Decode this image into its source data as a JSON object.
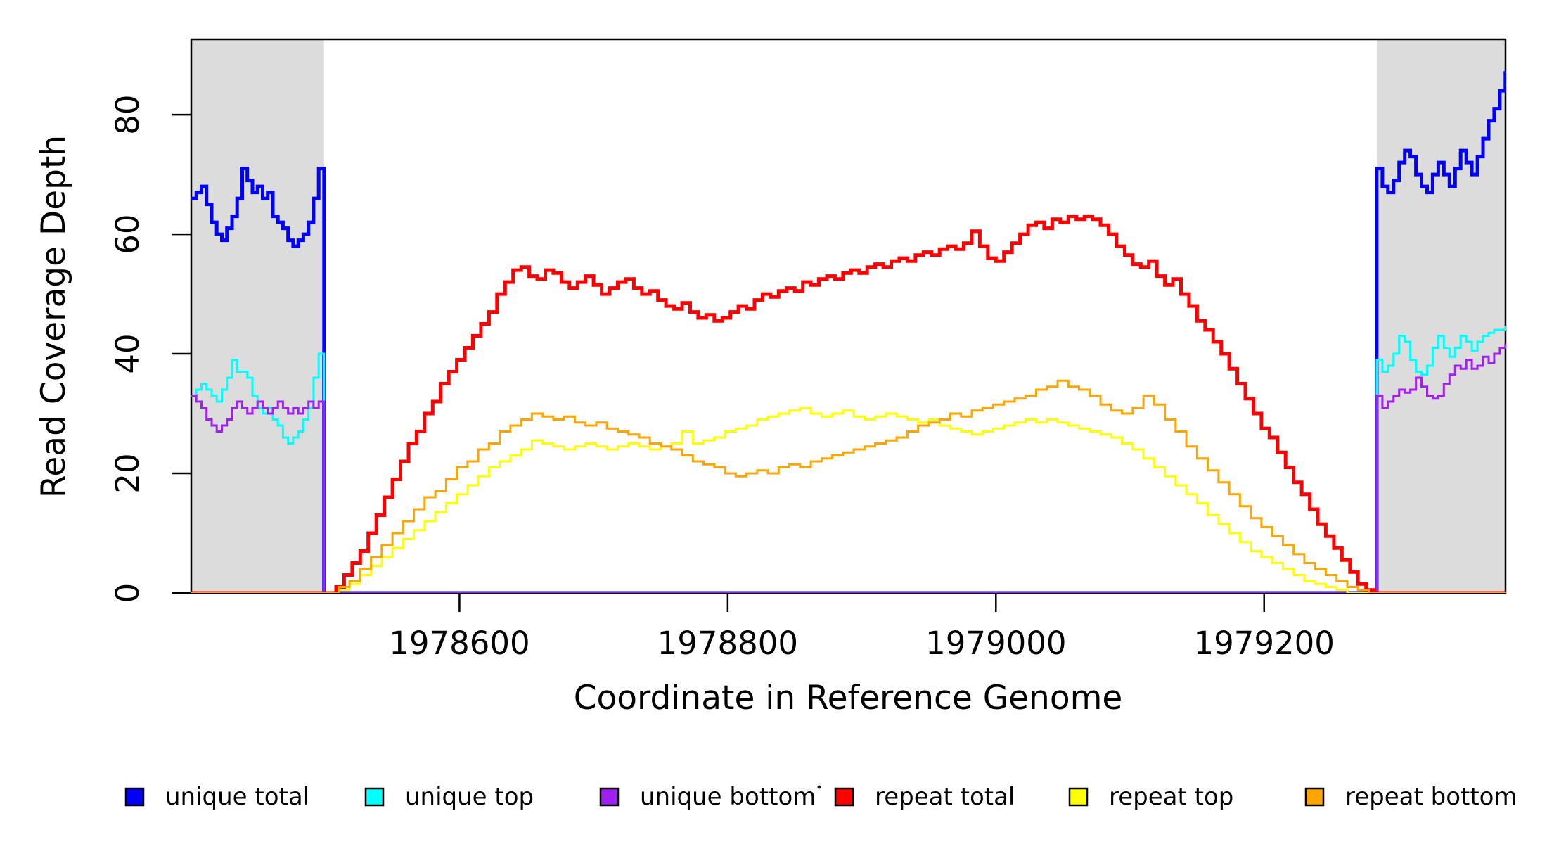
{
  "chart_data": {
    "type": "line",
    "title": "",
    "xlabel": "Coordinate in Reference Genome",
    "ylabel": "Read Coverage Depth",
    "xlim": [
      1978400,
      1979380
    ],
    "ylim": [
      0,
      92.6
    ],
    "x_ticks": [
      1978600,
      1978800,
      1979000,
      1979200
    ],
    "y_ticks": [
      0,
      20,
      40,
      60,
      80
    ],
    "grid": false,
    "background_color": "#ffffff",
    "shaded_regions": [
      {
        "name": "left-unique-region",
        "x0": 1978400,
        "x1": 1978499,
        "color": "#DCDCDC"
      },
      {
        "name": "right-unique-region",
        "x0": 1979284,
        "x1": 1979380,
        "color": "#DCDCDC"
      }
    ],
    "series": [
      {
        "name": "unique total",
        "color": "#0000FF",
        "width": 5,
        "segments": [
          {
            "x0": 1978400,
            "dx": 3.8,
            "v": [
              66,
              67,
              68,
              65,
              62,
              60,
              59,
              61,
              63,
              66,
              71,
              69,
              67,
              68,
              66,
              67,
              63,
              62,
              61,
              59,
              58,
              59,
              60,
              62,
              66,
              71
            ]
          },
          {
            "x0": 1978499,
            "dx": 1,
            "v": [
              0
            ]
          },
          {
            "x0": 1979284,
            "dx": 4.17,
            "v": [
              71,
              68,
              67,
              69,
              72,
              74,
              73,
              70,
              68,
              67,
              70,
              72,
              70,
              68,
              71,
              74,
              72,
              70,
              73,
              76,
              79,
              81,
              84,
              87
            ]
          }
        ]
      },
      {
        "name": "unique top",
        "color": "#00FFFF",
        "width": 3,
        "segments": [
          {
            "x0": 1978400,
            "dx": 3.8,
            "v": [
              33,
              34,
              35,
              34,
              33,
              32,
              34,
              36,
              39,
              37,
              37,
              36,
              33,
              31,
              30,
              31,
              29,
              28,
              26,
              25,
              26,
              27,
              29,
              31,
              36,
              40
            ]
          },
          {
            "x0": 1978499,
            "dx": 1,
            "v": [
              0
            ]
          },
          {
            "x0": 1979284,
            "dx": 4.17,
            "v": [
              39,
              37,
              38,
              40,
              43,
              42,
              39,
              37,
              36.5,
              38,
              41,
              43,
              41,
              39.5,
              41,
              43,
              42,
              40.5,
              42,
              43,
              43.5,
              44,
              44,
              44.5
            ]
          }
        ]
      },
      {
        "name": "unique bottom",
        "color": "#A020F0",
        "width": 3,
        "segments": [
          {
            "x0": 1978400,
            "dx": 3.8,
            "v": [
              33,
              32,
              31,
              29,
              28,
              27,
              28,
              29,
              31,
              32,
              31,
              30,
              31,
              32,
              31,
              30,
              31,
              32,
              31,
              30,
              31,
              30,
              31,
              32,
              31,
              32
            ]
          },
          {
            "x0": 1978499,
            "dx": 1,
            "v": [
              0
            ]
          },
          {
            "x0": 1979284,
            "dx": 4.17,
            "v": [
              33,
              31,
              32,
              33,
              34,
              33.5,
              34,
              36,
              34.5,
              33,
              32.5,
              33,
              35,
              36.5,
              38,
              37.5,
              39,
              37.5,
              38,
              39.5,
              38.5,
              40,
              41,
              41.5
            ]
          }
        ]
      },
      {
        "name": "repeat total",
        "color": "#FF0000",
        "width": 5,
        "segments": [
          {
            "x0": 1978400,
            "dx": 1,
            "v": [
              0
            ]
          },
          {
            "x0": 1978502,
            "dx": 6,
            "v": [
              0,
              1,
              3,
              5,
              7,
              10,
              13,
              16,
              19,
              22,
              25,
              27,
              30,
              32,
              35,
              37,
              39,
              41,
              43,
              45,
              47,
              50,
              52,
              54,
              54.5,
              53,
              52.5,
              54,
              53.5,
              52,
              51,
              52,
              53,
              51.5,
              50,
              51,
              52,
              52.5,
              51,
              50,
              50.5,
              49,
              48,
              47.5,
              48.5,
              47,
              46,
              46.5,
              45.5,
              46,
              47,
              48,
              47.5,
              49,
              50,
              49.5,
              50.5,
              51,
              50.5,
              52,
              51.5,
              52.5,
              53,
              52.5,
              53.5,
              54,
              53.5,
              54.5,
              55,
              54.5,
              55.5,
              56,
              55.5,
              56.5,
              57,
              56.5,
              57.5,
              58,
              57.5,
              58.5,
              60.5,
              58,
              56,
              55.5,
              57,
              58.5,
              60,
              61.5,
              62,
              61,
              62.5,
              62,
              63,
              62.5,
              63,
              62.5,
              61.5,
              60,
              58,
              56.5,
              55,
              54.5,
              55.5,
              53,
              51.5,
              52.5,
              50,
              48,
              45.5,
              44,
              42,
              40,
              37.5,
              35,
              32.5,
              30,
              27.5,
              26,
              23.5,
              21,
              18.5,
              16.5,
              14,
              11.5,
              9.5,
              7.5,
              5.5,
              3.5,
              1.5,
              0.5,
              0
            ]
          },
          {
            "x0": 1979380,
            "dx": 1,
            "v": [
              0
            ]
          }
        ]
      },
      {
        "name": "repeat top",
        "color": "#FFFF00",
        "width": 3,
        "segments": [
          {
            "x0": 1978400,
            "dx": 1,
            "v": [
              0
            ]
          },
          {
            "x0": 1978502,
            "dx": 8,
            "v": [
              0,
              0.5,
              1.5,
              3,
              4.5,
              6,
              7.5,
              9,
              10.5,
              12,
              13.5,
              15,
              16.5,
              18,
              19.5,
              21,
              22,
              23,
              24,
              25.5,
              25,
              24.5,
              24,
              24.5,
              25,
              24.5,
              24,
              24.5,
              25,
              24.5,
              24,
              24.5,
              25,
              27,
              25,
              25.5,
              26,
              27,
              27.5,
              28,
              29,
              29.5,
              30,
              30.5,
              31,
              30,
              29.5,
              30,
              30.5,
              29.5,
              29,
              29.5,
              30,
              29.5,
              29,
              28.5,
              29,
              28,
              27.5,
              27,
              26.5,
              27,
              27.5,
              28,
              28.5,
              29,
              28.5,
              29,
              28.5,
              28,
              27.5,
              27,
              26.5,
              26,
              25,
              24,
              22.5,
              21,
              19.5,
              18,
              16.5,
              15,
              13,
              11.5,
              10,
              8.5,
              7,
              6,
              5,
              4,
              3,
              2,
              1.5,
              1,
              0.5,
              0
            ]
          },
          {
            "x0": 1979380,
            "dx": 1,
            "v": [
              0
            ]
          }
        ]
      },
      {
        "name": "repeat bottom",
        "color": "#FFA500",
        "width": 3,
        "segments": [
          {
            "x0": 1978400,
            "dx": 1,
            "v": [
              0
            ]
          },
          {
            "x0": 1978502,
            "dx": 8,
            "v": [
              0,
              1,
              2,
              4,
              6,
              8,
              10,
              12,
              14,
              16,
              17,
              19,
              21,
              22,
              24,
              25,
              27,
              28,
              29,
              30,
              29.5,
              29,
              29.5,
              28.5,
              28,
              28.5,
              27.5,
              27,
              26.5,
              26,
              25,
              24.5,
              24,
              23,
              22,
              21.5,
              21,
              20,
              19.5,
              20,
              20.5,
              20,
              21,
              21.5,
              21,
              22,
              22.5,
              23,
              23.5,
              24,
              24.5,
              25,
              25.5,
              26,
              27,
              28,
              28.5,
              29,
              30,
              29.5,
              30.5,
              31,
              31.5,
              32,
              32.5,
              33,
              34,
              34.5,
              35.5,
              34.5,
              34,
              33,
              31.5,
              30.5,
              30,
              31,
              33,
              31.5,
              29,
              27,
              24.5,
              22.5,
              20.5,
              18.5,
              16.5,
              14.5,
              12.5,
              11,
              9.5,
              8,
              6.5,
              5,
              4,
              3,
              2,
              1,
              0.5,
              0
            ]
          },
          {
            "x0": 1979380,
            "dx": 1,
            "v": [
              0
            ]
          }
        ]
      }
    ],
    "legend": {
      "position": "bottom",
      "items": [
        {
          "label": "unique total",
          "color": "#0000FF"
        },
        {
          "label": "unique top",
          "color": "#00FFFF"
        },
        {
          "label": "unique bottom",
          "color": "#A020F0"
        },
        {
          "label": "repeat total",
          "color": "#FF0000"
        },
        {
          "label": "repeat top",
          "color": "#FFFF00"
        },
        {
          "label": "repeat bottom",
          "color": "#FFA500"
        }
      ]
    },
    "artifact_dot": {
      "x": 1165,
      "y": 1119
    }
  }
}
